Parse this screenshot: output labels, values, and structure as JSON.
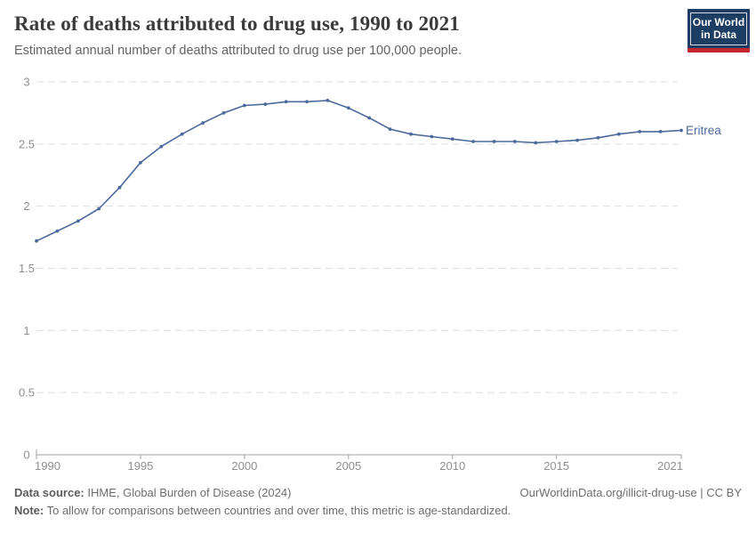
{
  "header": {
    "title": "Rate of deaths attributed to drug use, 1990 to 2021",
    "subtitle": "Estimated annual number of deaths attributed to drug use per 100,000 people.",
    "logo": {
      "line1": "Our World",
      "line2": "in Data",
      "bg_color": "#1d3d63",
      "bar_color": "#c1272d"
    }
  },
  "chart_data": {
    "type": "line",
    "title": "Rate of deaths attributed to drug use, 1990 to 2021",
    "xlabel": "",
    "ylabel": "",
    "xlim": [
      1990,
      2021
    ],
    "ylim": [
      0,
      3
    ],
    "grid": true,
    "grid_style": "dashed-horizontal",
    "x_ticks": [
      1990,
      1995,
      2000,
      2005,
      2010,
      2015,
      2021
    ],
    "y_ticks": [
      0,
      0.5,
      1,
      1.5,
      2,
      2.5,
      3
    ],
    "legend_position": "end-of-line-label",
    "series": [
      {
        "name": "Eritrea",
        "color": "#4c6a9c",
        "x": [
          1990,
          1991,
          1992,
          1993,
          1994,
          1995,
          1996,
          1997,
          1998,
          1999,
          2000,
          2001,
          2002,
          2003,
          2004,
          2005,
          2006,
          2007,
          2008,
          2009,
          2010,
          2011,
          2012,
          2013,
          2014,
          2015,
          2016,
          2017,
          2018,
          2019,
          2020,
          2021
        ],
        "values": [
          1.72,
          1.8,
          1.88,
          1.98,
          2.15,
          2.35,
          2.48,
          2.58,
          2.67,
          2.75,
          2.81,
          2.82,
          2.84,
          2.84,
          2.85,
          2.79,
          2.71,
          2.62,
          2.58,
          2.56,
          2.54,
          2.52,
          2.52,
          2.52,
          2.51,
          2.52,
          2.53,
          2.55,
          2.58,
          2.6,
          2.6,
          2.61
        ]
      }
    ]
  },
  "footer": {
    "datasource_label": "Data source:",
    "datasource_value": " IHME, Global Burden of Disease (2024)",
    "credit": "OurWorldinData.org/illicit-drug-use | CC BY",
    "note_label": "Note:",
    "note_value": " To allow for comparisons between countries and over time, this metric is age-standardized."
  }
}
